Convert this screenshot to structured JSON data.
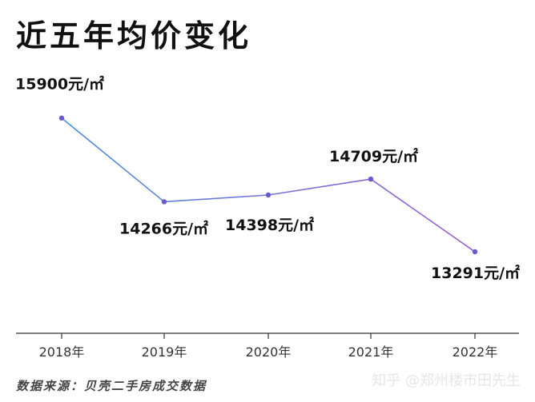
{
  "chart_data": {
    "type": "line",
    "title": "近五年均价变化",
    "categories": [
      "2018年",
      "2019年",
      "2020年",
      "2021年",
      "2022年"
    ],
    "values": [
      15900,
      14266,
      14398,
      14709,
      13291
    ],
    "data_labels": [
      "15900元/㎡",
      "14266元/㎡",
      "14398元/㎡",
      "14709元/㎡",
      "13291元/㎡"
    ],
    "ylim": [
      11700,
      16800
    ],
    "grid": false,
    "legend": "none",
    "colors": {
      "line_start": "#4a90d9",
      "line_end": "#9b59d6",
      "marker": "#6a5acd",
      "axis": "#333333"
    }
  },
  "footer": {
    "source": "数据来源：贝壳二手房成交数据",
    "watermark": "知乎 @郑州楼市田先生"
  }
}
